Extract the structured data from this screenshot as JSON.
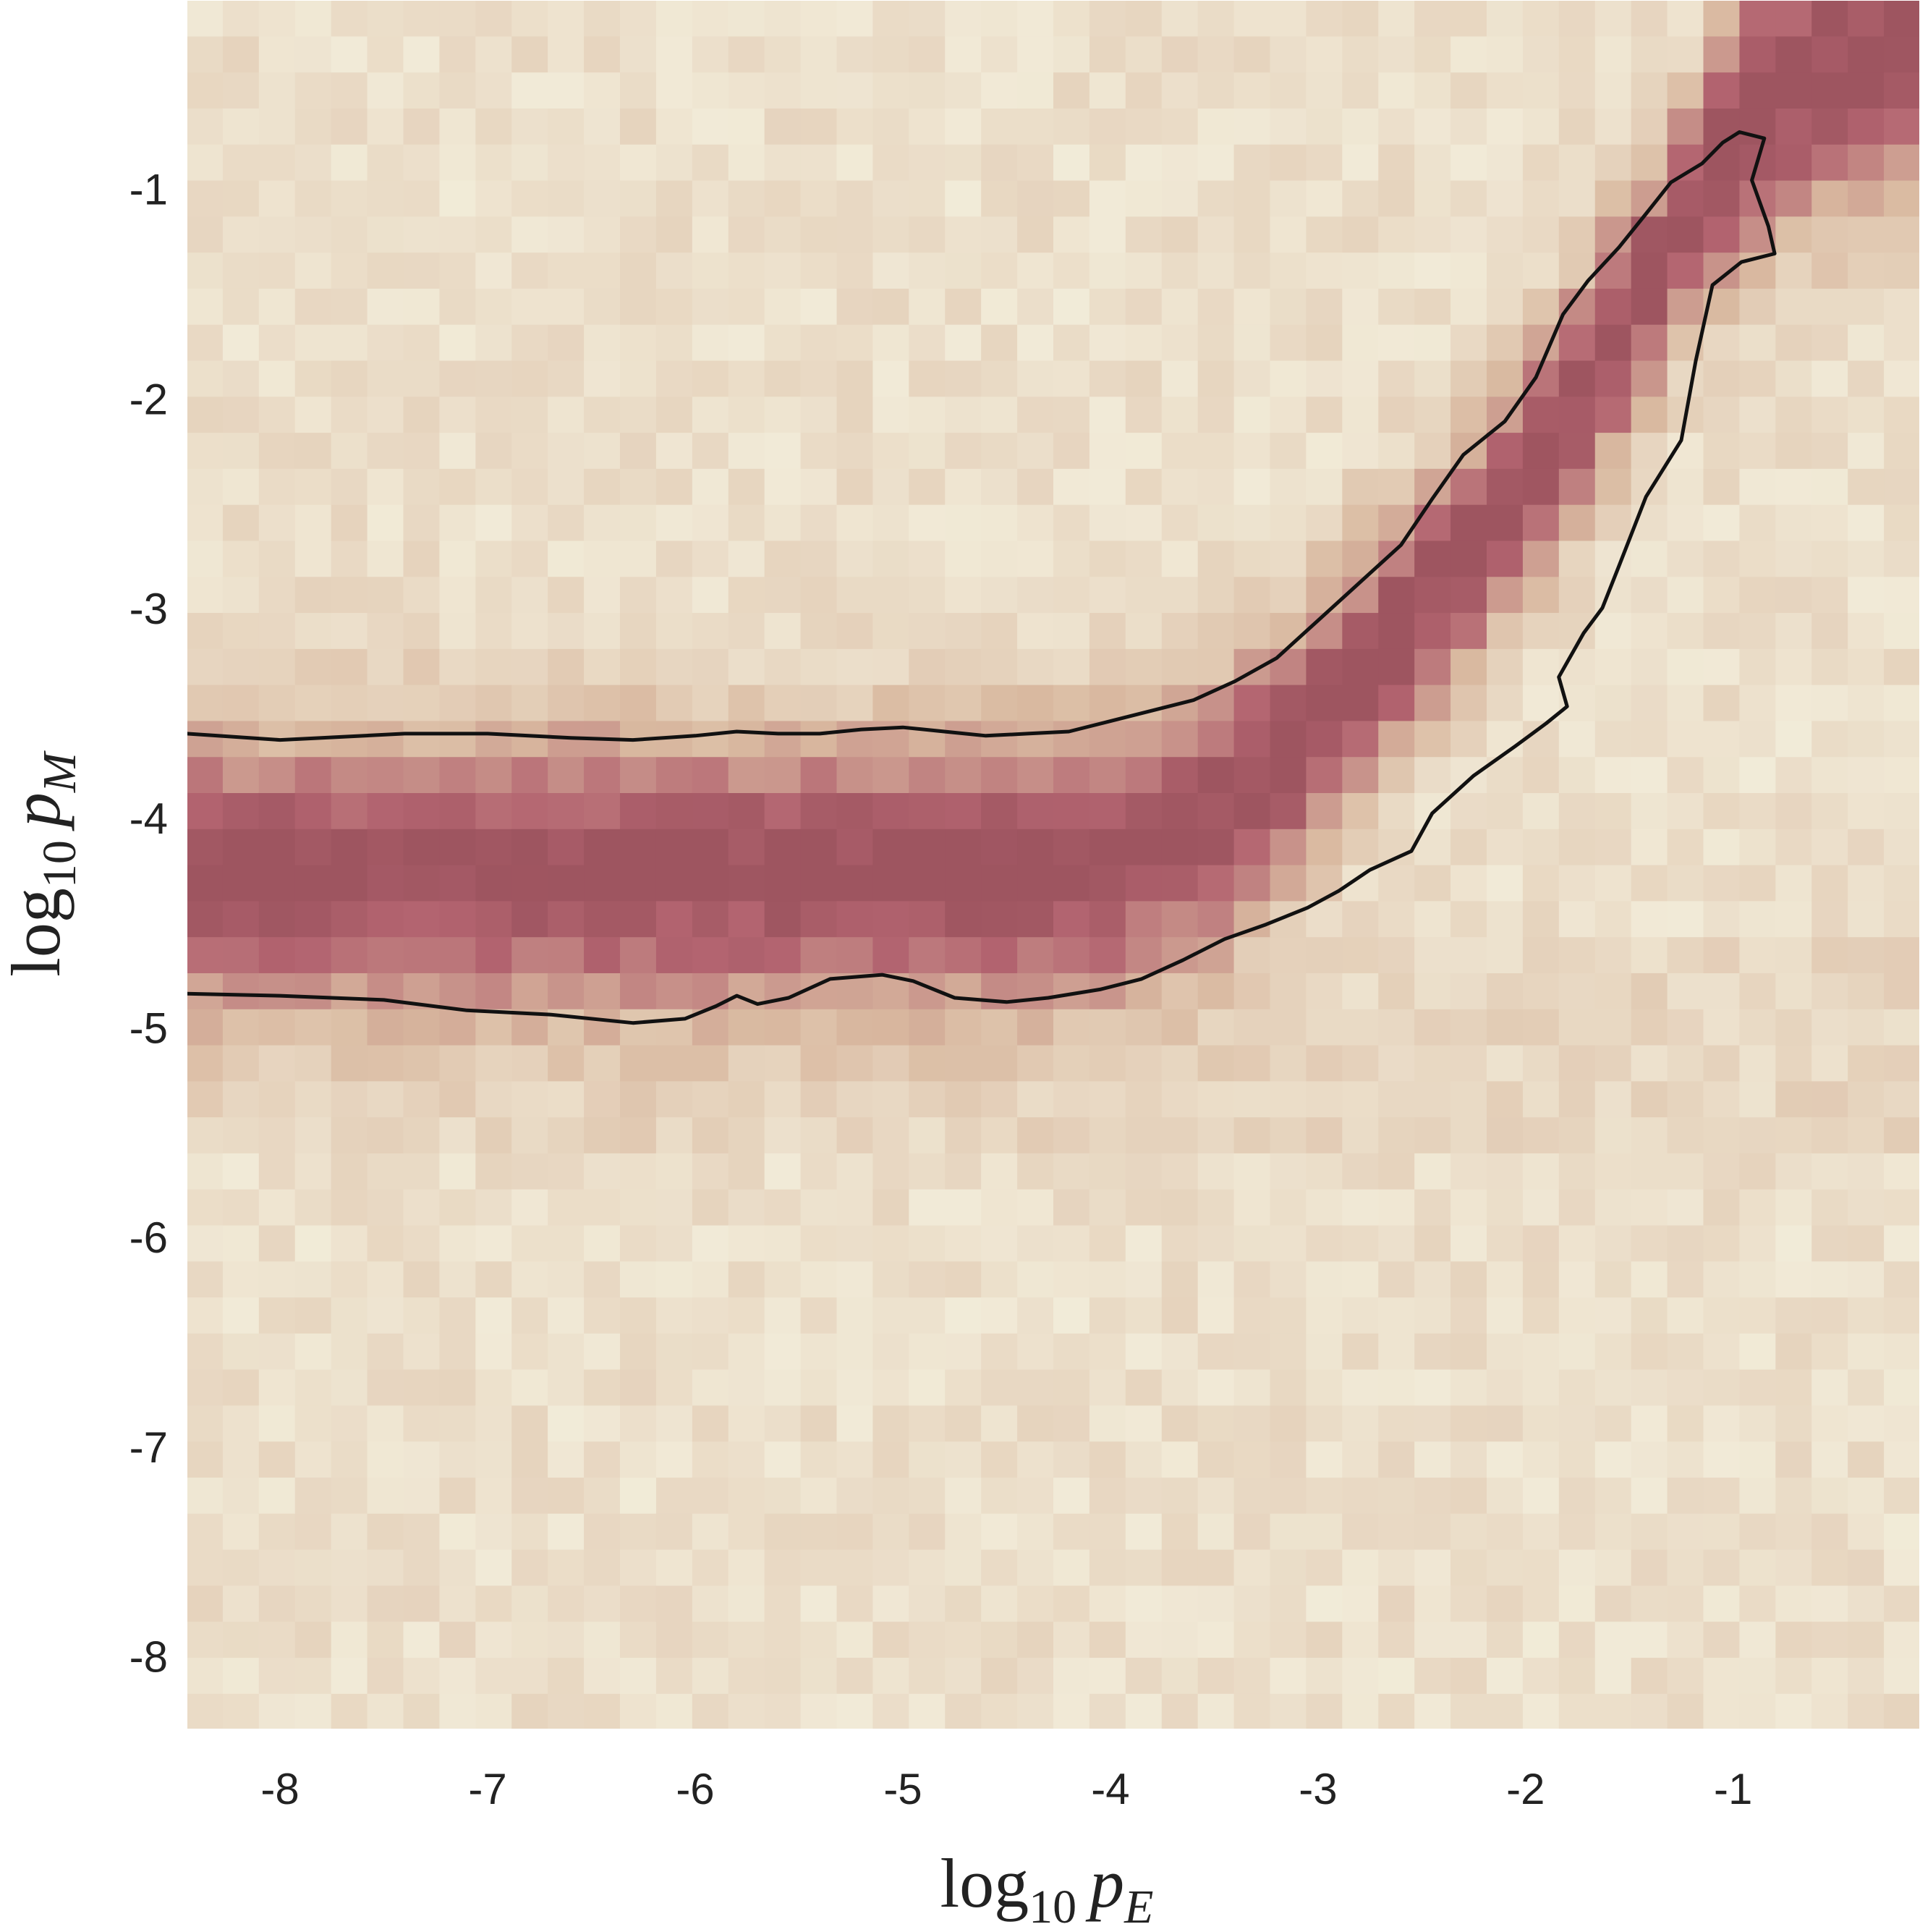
{
  "chart_data": {
    "type": "heatmap",
    "title": "",
    "xlabel": {
      "base": "log",
      "sub": "10",
      "var": "p",
      "var_sub": "E"
    },
    "ylabel": {
      "base": "log",
      "sub": "10",
      "var": "p",
      "var_sub": "M"
    },
    "xlim": [
      -8.45,
      -0.1
    ],
    "ylim": [
      -8.35,
      -0.1
    ],
    "xticks": [
      -8,
      -7,
      -6,
      -5,
      -4,
      -3,
      -2,
      -1
    ],
    "yticks": [
      -1,
      -2,
      -3,
      -4,
      -5,
      -6,
      -7,
      -8
    ],
    "xtick_labels": [
      "-8",
      "-7",
      "-6",
      "-5",
      "-4",
      "-3",
      "-2",
      "-1"
    ],
    "ytick_labels": [
      "-1",
      "-2",
      "-3",
      "-4",
      "-5",
      "-6",
      "-7",
      "-8"
    ],
    "grid": false,
    "colormap": {
      "low": "#f6f4e2",
      "mid": "#d9b9a0",
      "high": "#b36470",
      "max": "#9e5560"
    },
    "bins": {
      "nx": 48,
      "ny": 48,
      "noise": 0.09
    },
    "ridge": [
      {
        "x": -8.45,
        "center": -4.25,
        "width": 0.45
      },
      {
        "x": -5.0,
        "center": -4.25,
        "width": 0.45
      },
      {
        "x": -4.0,
        "center": -4.2,
        "width": 0.45
      },
      {
        "x": -3.5,
        "center": -4.0,
        "width": 0.45
      },
      {
        "x": -3.0,
        "center": -3.55,
        "width": 0.42
      },
      {
        "x": -2.5,
        "center": -3.0,
        "width": 0.4
      },
      {
        "x": -2.0,
        "center": -2.4,
        "width": 0.38
      },
      {
        "x": -1.5,
        "center": -1.6,
        "width": 0.38
      },
      {
        "x": -1.2,
        "center": -1.1,
        "width": 0.38
      },
      {
        "x": -0.9,
        "center": -0.6,
        "width": 0.5
      },
      {
        "x": -0.1,
        "center": -0.2,
        "width": 0.5
      }
    ],
    "contour": [
      [
        -8.45,
        -3.6
      ],
      [
        -8.3,
        -3.61
      ],
      [
        -8.0,
        -3.63
      ],
      [
        -7.8,
        -3.62
      ],
      [
        -7.4,
        -3.6
      ],
      [
        -7.0,
        -3.6
      ],
      [
        -6.6,
        -3.62
      ],
      [
        -6.3,
        -3.63
      ],
      [
        -6.0,
        -3.61
      ],
      [
        -5.8,
        -3.59
      ],
      [
        -5.6,
        -3.6
      ],
      [
        -5.4,
        -3.6
      ],
      [
        -5.2,
        -3.58
      ],
      [
        -5.0,
        -3.57
      ],
      [
        -4.8,
        -3.59
      ],
      [
        -4.6,
        -3.61
      ],
      [
        -4.4,
        -3.6
      ],
      [
        -4.2,
        -3.59
      ],
      [
        -4.0,
        -3.54
      ],
      [
        -3.8,
        -3.49
      ],
      [
        -3.6,
        -3.44
      ],
      [
        -3.4,
        -3.35
      ],
      [
        -3.2,
        -3.24
      ],
      [
        -3.0,
        -3.06
      ],
      [
        -2.8,
        -2.88
      ],
      [
        -2.6,
        -2.7
      ],
      [
        -2.45,
        -2.48
      ],
      [
        -2.3,
        -2.27
      ],
      [
        -2.1,
        -2.11
      ],
      [
        -1.95,
        -1.9
      ],
      [
        -1.82,
        -1.6
      ],
      [
        -1.7,
        -1.44
      ],
      [
        -1.55,
        -1.28
      ],
      [
        -1.42,
        -1.12
      ],
      [
        -1.3,
        -0.97
      ],
      [
        -1.15,
        -0.88
      ],
      [
        -1.05,
        -0.78
      ],
      [
        -0.97,
        -0.73
      ],
      [
        -0.85,
        -0.76
      ],
      [
        -0.91,
        -0.96
      ],
      [
        -0.83,
        -1.18
      ],
      [
        -0.8,
        -1.31
      ],
      [
        -0.96,
        -1.35
      ],
      [
        -1.1,
        -1.46
      ],
      [
        -1.18,
        -1.82
      ],
      [
        -1.25,
        -2.2
      ],
      [
        -1.42,
        -2.47
      ],
      [
        -1.55,
        -2.8
      ],
      [
        -1.63,
        -3.0
      ],
      [
        -1.72,
        -3.12
      ],
      [
        -1.84,
        -3.33
      ],
      [
        -1.8,
        -3.47
      ],
      [
        -1.9,
        -3.55
      ],
      [
        -2.05,
        -3.66
      ],
      [
        -2.25,
        -3.8
      ],
      [
        -2.45,
        -3.98
      ],
      [
        -2.55,
        -4.16
      ],
      [
        -2.75,
        -4.25
      ],
      [
        -2.9,
        -4.35
      ],
      [
        -3.05,
        -4.43
      ],
      [
        -3.25,
        -4.51
      ],
      [
        -3.45,
        -4.58
      ],
      [
        -3.65,
        -4.68
      ],
      [
        -3.85,
        -4.77
      ],
      [
        -4.05,
        -4.82
      ],
      [
        -4.3,
        -4.86
      ],
      [
        -4.5,
        -4.88
      ],
      [
        -4.75,
        -4.86
      ],
      [
        -4.95,
        -4.78
      ],
      [
        -5.1,
        -4.75
      ],
      [
        -5.35,
        -4.77
      ],
      [
        -5.55,
        -4.86
      ],
      [
        -5.7,
        -4.89
      ],
      [
        -5.8,
        -4.85
      ],
      [
        -5.9,
        -4.9
      ],
      [
        -6.05,
        -4.96
      ],
      [
        -6.3,
        -4.98
      ],
      [
        -6.7,
        -4.94
      ],
      [
        -7.1,
        -4.92
      ],
      [
        -7.5,
        -4.87
      ],
      [
        -8.0,
        -4.85
      ],
      [
        -8.45,
        -4.84
      ]
    ]
  }
}
